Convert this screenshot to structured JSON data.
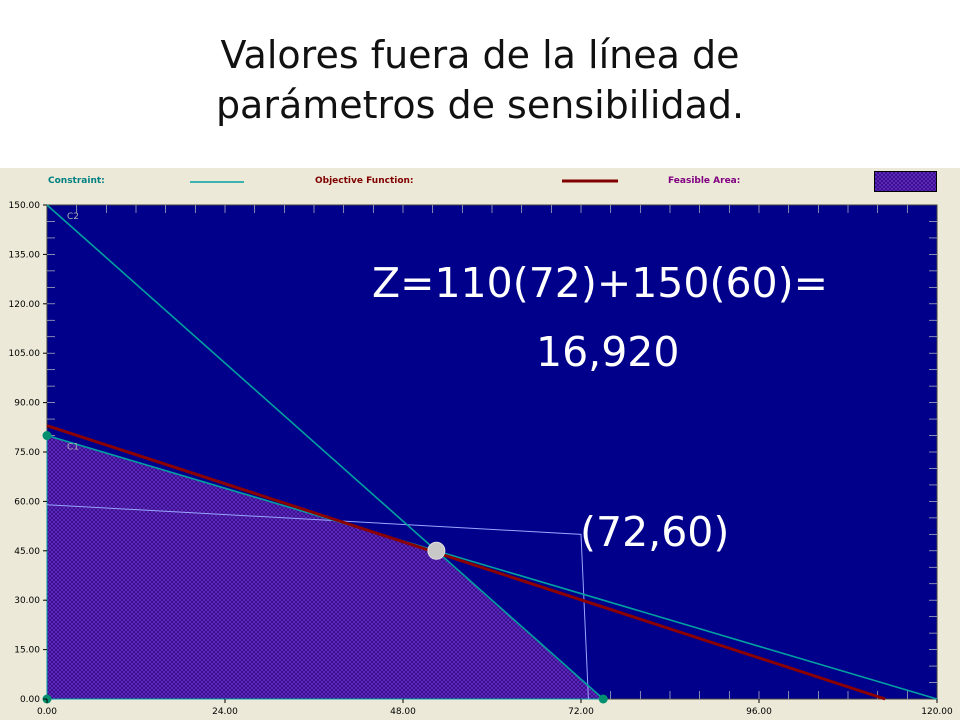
{
  "slide": {
    "title_line1": "Valores fuera de la línea de",
    "title_line2": "parámetros de sensibilidad."
  },
  "legend": {
    "constraint_label": "Constraint:",
    "objective_label": "Objective Function:",
    "feasible_label": "Feasible Area:",
    "constraint_color": "#00a0a0",
    "objective_color": "#800000",
    "feasible_color": "#3a0a8c"
  },
  "annotations": {
    "z_line1": "Z=110(72)+150(60)=",
    "z_line2": "16,920",
    "point_label": "(72,60)"
  },
  "chart_data": {
    "type": "line",
    "title": "",
    "xlabel": "",
    "ylabel": "",
    "xlim": [
      0,
      120
    ],
    "ylim": [
      0,
      150
    ],
    "xticks": [
      "0.00",
      "24.00",
      "48.00",
      "72.00",
      "96.00",
      "120.00"
    ],
    "yticks": [
      "0.00",
      "15.00",
      "30.00",
      "45.00",
      "60.00",
      "75.00",
      "90.00",
      "105.00",
      "120.00",
      "135.00",
      "150.00"
    ],
    "grid": true,
    "plot_background": "#00008b",
    "constraints": [
      {
        "name": "C1",
        "points": [
          [
            0,
            80
          ],
          [
            120,
            0
          ]
        ]
      },
      {
        "name": "C2",
        "points": [
          [
            0,
            150
          ],
          [
            75,
            0
          ]
        ]
      }
    ],
    "objective_function": {
      "points": [
        [
          0,
          83
        ],
        [
          113,
          0
        ]
      ]
    },
    "feasible_area": [
      [
        0,
        0
      ],
      [
        0,
        80
      ],
      [
        52.5,
        45
      ],
      [
        75,
        0
      ]
    ],
    "reference_path": [
      [
        0,
        59
      ],
      [
        72,
        50
      ],
      [
        73,
        0
      ]
    ],
    "corner_points": [
      [
        0,
        80
      ],
      [
        0,
        0
      ],
      [
        75,
        0
      ]
    ],
    "optimal_point": [
      52.5,
      45
    ]
  }
}
